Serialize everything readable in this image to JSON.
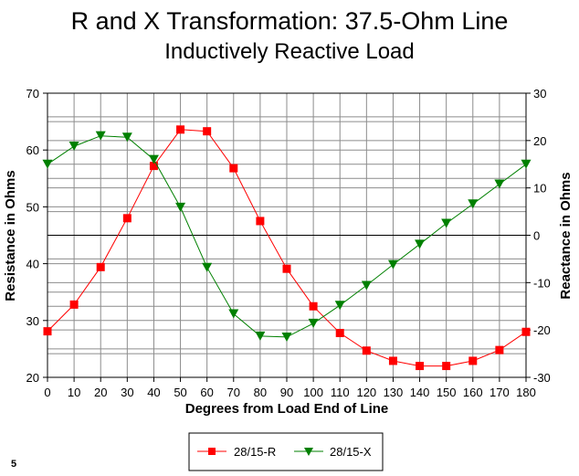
{
  "page_number": "5",
  "chart_data": {
    "type": "line",
    "title": "R and X Transformation: 37.5-Ohm Line",
    "subtitle": "Inductively Reactive Load",
    "xlabel": "Degrees from Load End of Line",
    "ylabel_left": "Resistance in Ohms",
    "ylabel_right": "Reactance in Ohms",
    "x": [
      0,
      10,
      20,
      30,
      40,
      50,
      60,
      70,
      80,
      90,
      100,
      110,
      120,
      130,
      140,
      150,
      160,
      170,
      180
    ],
    "xlim": [
      0,
      180
    ],
    "ylim_left": [
      20,
      70
    ],
    "ylim_right": [
      -30,
      30
    ],
    "yticks_left": [
      20,
      30,
      40,
      50,
      60,
      70
    ],
    "yticks_right": [
      -30,
      -20,
      -10,
      0,
      10,
      20,
      30
    ],
    "grid": true,
    "legend_position": "bottom-center",
    "series": [
      {
        "name": "28/15-R",
        "axis": "left",
        "color": "#ff0000",
        "marker": "square",
        "values": [
          28.1,
          32.8,
          39.4,
          48.0,
          57.2,
          63.6,
          63.3,
          56.8,
          47.5,
          39.1,
          32.5,
          27.8,
          24.7,
          22.9,
          22.0,
          22.0,
          22.9,
          24.8,
          28.0
        ]
      },
      {
        "name": "28/15-X",
        "axis": "right",
        "color": "#008000",
        "marker": "triangle-down",
        "values": [
          15.0,
          18.8,
          21.0,
          20.7,
          16.0,
          5.9,
          -6.8,
          -16.6,
          -21.3,
          -21.5,
          -18.6,
          -14.8,
          -10.6,
          -6.2,
          -1.9,
          2.5,
          6.6,
          10.8,
          15.0
        ]
      }
    ]
  }
}
